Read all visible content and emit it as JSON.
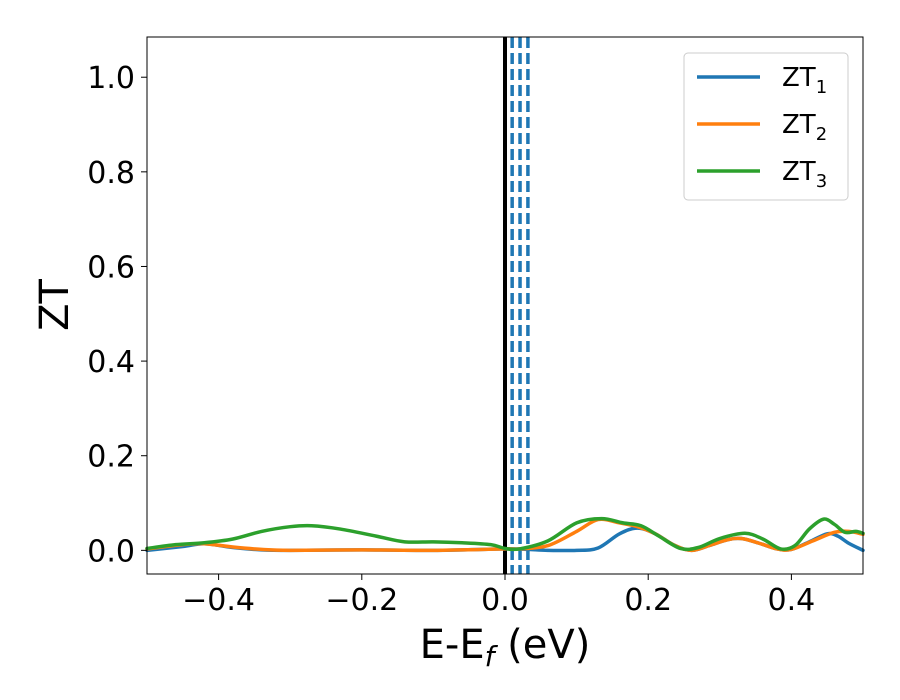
{
  "chart_data": {
    "type": "line",
    "title": "",
    "xlabel": {
      "main": "E-E",
      "sub": "f",
      "rest": " (eV)"
    },
    "ylabel": "ZT",
    "xlim": [
      -0.5,
      0.5
    ],
    "ylim": [
      -0.05,
      1.085
    ],
    "x_ticks": [
      -0.4,
      -0.2,
      0.0,
      0.2,
      0.4
    ],
    "x_tick_labels": [
      "−0.4",
      "−0.2",
      "0.0",
      "0.2",
      "0.4"
    ],
    "y_ticks": [
      0.0,
      0.2,
      0.4,
      0.6,
      0.8,
      1.0
    ],
    "y_tick_labels": [
      "0.0",
      "0.2",
      "0.4",
      "0.6",
      "0.8",
      "1.0"
    ],
    "grid": false,
    "legend_position": "top-right",
    "vlines": [
      {
        "x": 0.0,
        "style": "solid",
        "color": "#000000"
      },
      {
        "x": 0.01,
        "style": "dashed",
        "color": "#1f77b4"
      },
      {
        "x": 0.021,
        "style": "dashed",
        "color": "#1f77b4"
      },
      {
        "x": 0.032,
        "style": "dashed",
        "color": "#1f77b4"
      }
    ],
    "series": [
      {
        "name": {
          "main": "ZT",
          "sub": "1"
        },
        "color": "#1f77b4",
        "points": [
          [
            -0.5,
            0.0
          ],
          [
            -0.45,
            0.008
          ],
          [
            -0.42,
            0.014
          ],
          [
            -0.38,
            0.006
          ],
          [
            -0.34,
            0.001
          ],
          [
            -0.3,
            0.0
          ],
          [
            -0.2,
            0.001
          ],
          [
            -0.1,
            0.0
          ],
          [
            0.0,
            0.003
          ],
          [
            0.03,
            0.002
          ],
          [
            0.06,
            0.0
          ],
          [
            0.1,
            0.0
          ],
          [
            0.13,
            0.005
          ],
          [
            0.16,
            0.035
          ],
          [
            0.185,
            0.047
          ],
          [
            0.21,
            0.035
          ],
          [
            0.235,
            0.012
          ],
          [
            0.26,
            0.0
          ],
          [
            0.285,
            0.01
          ],
          [
            0.31,
            0.022
          ],
          [
            0.33,
            0.025
          ],
          [
            0.355,
            0.015
          ],
          [
            0.38,
            0.003
          ],
          [
            0.4,
            0.002
          ],
          [
            0.425,
            0.018
          ],
          [
            0.45,
            0.035
          ],
          [
            0.465,
            0.03
          ],
          [
            0.48,
            0.015
          ],
          [
            0.5,
            0.0
          ]
        ]
      },
      {
        "name": {
          "main": "ZT",
          "sub": "2"
        },
        "color": "#ff7f0e",
        "points": [
          [
            -0.5,
            0.003
          ],
          [
            -0.45,
            0.012
          ],
          [
            -0.42,
            0.014
          ],
          [
            -0.38,
            0.007
          ],
          [
            -0.34,
            0.002
          ],
          [
            -0.3,
            0.0
          ],
          [
            -0.2,
            0.001
          ],
          [
            -0.1,
            0.0
          ],
          [
            0.0,
            0.003
          ],
          [
            0.02,
            0.003
          ],
          [
            0.06,
            0.01
          ],
          [
            0.1,
            0.04
          ],
          [
            0.13,
            0.065
          ],
          [
            0.16,
            0.058
          ],
          [
            0.185,
            0.05
          ],
          [
            0.21,
            0.035
          ],
          [
            0.235,
            0.012
          ],
          [
            0.26,
            0.0
          ],
          [
            0.285,
            0.01
          ],
          [
            0.31,
            0.022
          ],
          [
            0.33,
            0.025
          ],
          [
            0.355,
            0.015
          ],
          [
            0.38,
            0.003
          ],
          [
            0.4,
            0.002
          ],
          [
            0.43,
            0.02
          ],
          [
            0.46,
            0.038
          ],
          [
            0.48,
            0.04
          ],
          [
            0.5,
            0.034
          ]
        ]
      },
      {
        "name": {
          "main": "ZT",
          "sub": "3"
        },
        "color": "#2ca02c",
        "points": [
          [
            -0.5,
            0.004
          ],
          [
            -0.46,
            0.012
          ],
          [
            -0.42,
            0.016
          ],
          [
            -0.38,
            0.024
          ],
          [
            -0.34,
            0.04
          ],
          [
            -0.3,
            0.05
          ],
          [
            -0.27,
            0.052
          ],
          [
            -0.23,
            0.045
          ],
          [
            -0.18,
            0.03
          ],
          [
            -0.14,
            0.018
          ],
          [
            -0.1,
            0.018
          ],
          [
            -0.06,
            0.016
          ],
          [
            -0.02,
            0.012
          ],
          [
            0.0,
            0.004
          ],
          [
            0.02,
            0.003
          ],
          [
            0.06,
            0.02
          ],
          [
            0.1,
            0.058
          ],
          [
            0.135,
            0.067
          ],
          [
            0.165,
            0.058
          ],
          [
            0.19,
            0.052
          ],
          [
            0.215,
            0.03
          ],
          [
            0.245,
            0.004
          ],
          [
            0.27,
            0.006
          ],
          [
            0.3,
            0.025
          ],
          [
            0.335,
            0.036
          ],
          [
            0.36,
            0.024
          ],
          [
            0.385,
            0.003
          ],
          [
            0.405,
            0.01
          ],
          [
            0.425,
            0.045
          ],
          [
            0.445,
            0.066
          ],
          [
            0.46,
            0.055
          ],
          [
            0.475,
            0.038
          ],
          [
            0.49,
            0.04
          ],
          [
            0.5,
            0.036
          ]
        ]
      }
    ]
  }
}
